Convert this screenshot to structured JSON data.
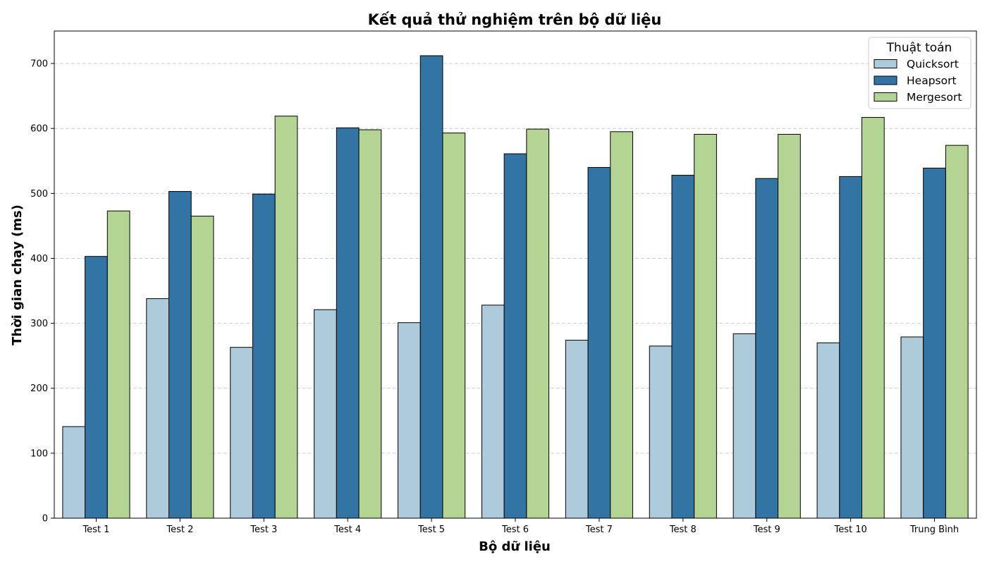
{
  "chart_data": {
    "type": "bar",
    "title": "Kết quả thử nghiệm trên bộ dữ liệu",
    "xlabel": "Bộ dữ liệu",
    "ylabel": "Thời gian chạy (ms)",
    "ylim": [
      0,
      750
    ],
    "yticks": [
      0,
      100,
      200,
      300,
      400,
      500,
      600,
      700
    ],
    "grid": "y-dashed",
    "legend_title": "Thuật toán",
    "legend_position": "top-right",
    "categories": [
      "Test 1",
      "Test 2",
      "Test 3",
      "Test 4",
      "Test 5",
      "Test 6",
      "Test 7",
      "Test 8",
      "Test 9",
      "Test 10",
      "Trung Bình"
    ],
    "series": [
      {
        "name": "Quicksort",
        "color": "#aecbdc",
        "values": [
          141,
          338,
          263,
          321,
          301,
          328,
          274,
          265,
          284,
          270,
          279
        ]
      },
      {
        "name": "Heapsort",
        "color": "#3274a3",
        "values": [
          403,
          503,
          499,
          601,
          712,
          561,
          540,
          528,
          523,
          526,
          539
        ]
      },
      {
        "name": "Mergesort",
        "color": "#b3d493",
        "values": [
          473,
          465,
          619,
          598,
          593,
          599,
          595,
          591,
          591,
          617,
          574
        ]
      }
    ]
  }
}
